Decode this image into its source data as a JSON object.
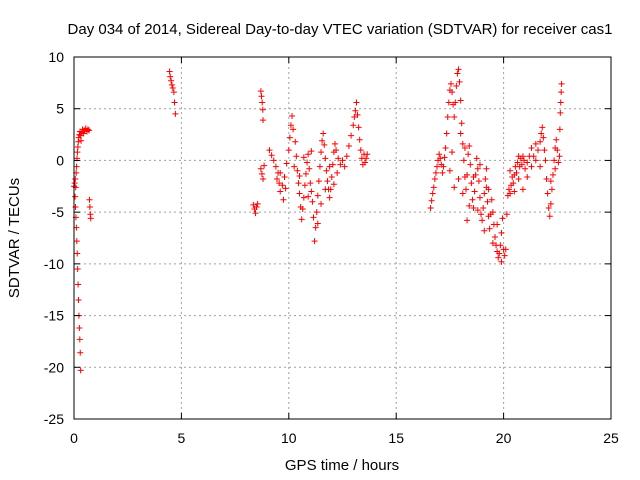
{
  "chart_data": {
    "type": "scatter",
    "title": "Day 034 of 2014, Sidereal Day-to-day VTEC variation (SDTVAR) for receiver cas1",
    "xlabel": "GPS time / hours",
    "ylabel": "SDTVAR / TECUs",
    "xlim": [
      0,
      25
    ],
    "ylim": [
      -25,
      10
    ],
    "xticks": [
      0,
      5,
      10,
      15,
      20,
      25
    ],
    "yticks": [
      -25,
      -20,
      -15,
      -10,
      -5,
      0,
      5,
      10
    ],
    "xtick_labels": [
      "0",
      "5",
      "10",
      "15",
      "20",
      "25"
    ],
    "ytick_labels": [
      "-25",
      "-20",
      "-15",
      "-10",
      "-5",
      "0",
      "5",
      "10"
    ],
    "grid": true,
    "marker": "+",
    "color": "#ff0000",
    "series": [
      {
        "name": "cas1",
        "points": [
          [
            0.0,
            -2.5
          ],
          [
            0.03,
            -2.2
          ],
          [
            0.06,
            -1.8
          ],
          [
            0.08,
            -2.6
          ],
          [
            0.1,
            -1.2
          ],
          [
            0.12,
            -0.6
          ],
          [
            0.14,
            0.2
          ],
          [
            0.16,
            0.8
          ],
          [
            0.18,
            1.3
          ],
          [
            0.2,
            1.8
          ],
          [
            0.22,
            2.2
          ],
          [
            0.25,
            2.5
          ],
          [
            0.28,
            2.8
          ],
          [
            0.3,
            2.4
          ],
          [
            0.33,
            1.9
          ],
          [
            0.36,
            2.7
          ],
          [
            0.4,
            3.0
          ],
          [
            0.45,
            2.6
          ],
          [
            0.5,
            2.9
          ],
          [
            0.55,
            3.1
          ],
          [
            0.6,
            2.8
          ],
          [
            0.65,
            3.0
          ],
          [
            0.7,
            2.9
          ],
          [
            0.05,
            -3.5
          ],
          [
            0.07,
            -4.5
          ],
          [
            0.09,
            -5.5
          ],
          [
            0.11,
            -6.5
          ],
          [
            0.13,
            -7.8
          ],
          [
            0.15,
            -9.0
          ],
          [
            0.17,
            -10.5
          ],
          [
            0.19,
            -12.0
          ],
          [
            0.21,
            -13.5
          ],
          [
            0.23,
            -15.0
          ],
          [
            0.25,
            -16.2
          ],
          [
            0.27,
            -17.3
          ],
          [
            0.29,
            -18.6
          ],
          [
            0.31,
            -20.3
          ],
          [
            0.72,
            -3.8
          ],
          [
            0.74,
            -4.5
          ],
          [
            0.76,
            -5.2
          ],
          [
            0.78,
            -5.6
          ],
          [
            4.45,
            8.6
          ],
          [
            4.48,
            8.1
          ],
          [
            4.52,
            7.7
          ],
          [
            4.56,
            7.3
          ],
          [
            4.6,
            7.0
          ],
          [
            4.65,
            6.6
          ],
          [
            4.68,
            5.6
          ],
          [
            4.72,
            4.5
          ],
          [
            8.35,
            -4.3
          ],
          [
            8.4,
            -4.7
          ],
          [
            8.45,
            -5.1
          ],
          [
            8.5,
            -4.5
          ],
          [
            8.55,
            -4.2
          ],
          [
            8.7,
            6.7
          ],
          [
            8.73,
            6.2
          ],
          [
            8.76,
            5.6
          ],
          [
            8.79,
            4.9
          ],
          [
            8.8,
            3.9
          ],
          [
            8.7,
            -0.8
          ],
          [
            8.75,
            -1.3
          ],
          [
            8.8,
            -1.8
          ],
          [
            8.85,
            -0.5
          ],
          [
            9.1,
            1.0
          ],
          [
            9.2,
            0.5
          ],
          [
            9.3,
            0.0
          ],
          [
            9.4,
            -0.6
          ],
          [
            9.5,
            -1.2
          ],
          [
            9.55,
            -2.2
          ],
          [
            9.6,
            -3.0
          ],
          [
            9.7,
            -2.4
          ],
          [
            9.8,
            -1.6
          ],
          [
            9.9,
            -0.3
          ],
          [
            10.0,
            1.0
          ],
          [
            10.05,
            2.2
          ],
          [
            10.1,
            3.4
          ],
          [
            10.15,
            4.3
          ],
          [
            10.2,
            3.0
          ],
          [
            10.3,
            1.8
          ],
          [
            10.35,
            0.4
          ],
          [
            10.4,
            -1.0
          ],
          [
            10.45,
            -2.2
          ],
          [
            10.5,
            -3.2
          ],
          [
            10.55,
            -4.5
          ],
          [
            10.6,
            -5.7
          ],
          [
            10.65,
            -4.7
          ],
          [
            10.7,
            -3.6
          ],
          [
            10.75,
            -2.4
          ],
          [
            10.8,
            -1.3
          ],
          [
            10.85,
            -0.2
          ],
          [
            10.9,
            0.6
          ],
          [
            10.95,
            -0.8
          ],
          [
            11.0,
            -2.2
          ],
          [
            11.05,
            -3.0
          ],
          [
            11.1,
            -4.0
          ],
          [
            11.15,
            -5.5
          ],
          [
            11.2,
            -7.8
          ],
          [
            11.25,
            -6.5
          ],
          [
            11.3,
            -5.0
          ],
          [
            11.35,
            -3.4
          ],
          [
            11.4,
            -2.0
          ],
          [
            11.45,
            -0.6
          ],
          [
            11.5,
            0.8
          ],
          [
            11.55,
            1.9
          ],
          [
            11.6,
            2.6
          ],
          [
            11.65,
            1.5
          ],
          [
            11.7,
            0.2
          ],
          [
            11.75,
            -1.0
          ],
          [
            11.8,
            -2.0
          ],
          [
            11.85,
            -2.8
          ],
          [
            11.9,
            -3.6
          ],
          [
            11.95,
            -2.8
          ],
          [
            12.0,
            -1.6
          ],
          [
            12.05,
            -0.4
          ],
          [
            12.1,
            0.8
          ],
          [
            12.15,
            1.6
          ],
          [
            12.2,
            1.0
          ],
          [
            12.3,
            0.2
          ],
          [
            12.4,
            -0.4
          ],
          [
            12.5,
            0.0
          ],
          [
            12.6,
            -0.6
          ],
          [
            12.7,
            0.4
          ],
          [
            12.8,
            1.4
          ],
          [
            12.9,
            2.4
          ],
          [
            13.0,
            3.4
          ],
          [
            13.05,
            4.2
          ],
          [
            13.1,
            4.8
          ],
          [
            13.15,
            5.6
          ],
          [
            13.2,
            4.4
          ],
          [
            13.25,
            3.2
          ],
          [
            13.3,
            2.0
          ],
          [
            13.35,
            1.0
          ],
          [
            13.4,
            0.2
          ],
          [
            13.45,
            -0.4
          ],
          [
            13.5,
            0.6
          ],
          [
            13.55,
            -0.2
          ],
          [
            13.6,
            0.2
          ],
          [
            13.65,
            0.6
          ],
          [
            9.45,
            -1.8
          ],
          [
            9.6,
            -1.2
          ],
          [
            9.75,
            -3.8
          ],
          [
            9.85,
            -2.7
          ],
          [
            10.25,
            -0.6
          ],
          [
            10.5,
            -1.5
          ],
          [
            10.7,
            0.3
          ],
          [
            10.9,
            -3.5
          ],
          [
            11.05,
            0.9
          ],
          [
            11.35,
            -6.1
          ],
          [
            11.5,
            -4.2
          ],
          [
            11.7,
            -2.8
          ],
          [
            11.9,
            -0.6
          ],
          [
            12.1,
            -2.3
          ],
          [
            12.25,
            -1.2
          ],
          [
            16.6,
            -4.6
          ],
          [
            16.65,
            -3.9
          ],
          [
            16.7,
            -3.2
          ],
          [
            16.75,
            -2.6
          ],
          [
            16.8,
            -1.8
          ],
          [
            16.85,
            -1.2
          ],
          [
            16.9,
            -0.6
          ],
          [
            16.95,
            0.0
          ],
          [
            17.0,
            0.6
          ],
          [
            17.05,
            0.2
          ],
          [
            17.1,
            -0.4
          ],
          [
            17.15,
            -1.2
          ],
          [
            17.2,
            -0.6
          ],
          [
            17.25,
            0.3
          ],
          [
            17.3,
            1.2
          ],
          [
            17.35,
            2.6
          ],
          [
            17.4,
            4.2
          ],
          [
            17.45,
            5.6
          ],
          [
            17.5,
            6.8
          ],
          [
            17.55,
            7.4
          ],
          [
            17.6,
            6.6
          ],
          [
            17.65,
            5.4
          ],
          [
            17.7,
            4.2
          ],
          [
            17.75,
            5.6
          ],
          [
            17.8,
            7.2
          ],
          [
            17.85,
            8.4
          ],
          [
            17.9,
            8.8
          ],
          [
            17.95,
            7.6
          ],
          [
            18.0,
            5.8
          ],
          [
            18.05,
            3.6
          ],
          [
            18.1,
            1.6
          ],
          [
            18.15,
            0.0
          ],
          [
            18.2,
            -1.6
          ],
          [
            18.25,
            -2.8
          ],
          [
            18.3,
            -1.4
          ],
          [
            18.35,
            0.6
          ],
          [
            18.4,
            1.4
          ],
          [
            18.45,
            -0.4
          ],
          [
            18.5,
            -2.2
          ],
          [
            18.55,
            -3.8
          ],
          [
            18.6,
            -4.6
          ],
          [
            18.65,
            -3.0
          ],
          [
            18.7,
            -1.4
          ],
          [
            18.75,
            0.2
          ],
          [
            18.8,
            -0.8
          ],
          [
            18.85,
            -2.0
          ],
          [
            18.9,
            -3.6
          ],
          [
            18.95,
            -5.2
          ],
          [
            19.0,
            -5.8
          ],
          [
            19.05,
            -4.6
          ],
          [
            19.1,
            -3.2
          ],
          [
            19.15,
            -1.8
          ],
          [
            19.2,
            -2.6
          ],
          [
            19.25,
            -4.0
          ],
          [
            19.3,
            -5.4
          ],
          [
            19.35,
            -6.6
          ],
          [
            19.4,
            -5.2
          ],
          [
            19.45,
            -3.8
          ],
          [
            19.5,
            -5.0
          ],
          [
            19.55,
            -6.2
          ],
          [
            19.6,
            -7.4
          ],
          [
            19.65,
            -8.2
          ],
          [
            19.7,
            -8.8
          ],
          [
            19.75,
            -9.4
          ],
          [
            19.8,
            -9.0
          ],
          [
            19.85,
            -8.2
          ],
          [
            19.9,
            -7.0
          ],
          [
            19.95,
            -5.6
          ],
          [
            20.0,
            -8.6
          ],
          [
            20.05,
            -9.2
          ],
          [
            20.1,
            -8.6
          ],
          [
            20.15,
            -5.2
          ],
          [
            20.2,
            -3.4
          ],
          [
            20.25,
            -2.8
          ],
          [
            20.3,
            -3.2
          ],
          [
            20.35,
            -2.4
          ],
          [
            20.4,
            -1.6
          ],
          [
            20.45,
            -2.2
          ],
          [
            20.5,
            -1.4
          ],
          [
            20.55,
            -0.6
          ],
          [
            20.6,
            -1.2
          ],
          [
            20.65,
            -0.2
          ],
          [
            20.7,
            0.4
          ],
          [
            20.75,
            -0.6
          ],
          [
            20.8,
            0.2
          ],
          [
            20.85,
            -0.4
          ],
          [
            20.9,
            0.4
          ],
          [
            20.95,
            0.0
          ],
          [
            21.0,
            -0.8
          ],
          [
            21.1,
            -0.2
          ],
          [
            21.2,
            0.4
          ],
          [
            21.3,
            1.2
          ],
          [
            21.4,
            0.4
          ],
          [
            21.5,
            0.0
          ],
          [
            21.6,
            1.0
          ],
          [
            21.7,
            1.8
          ],
          [
            21.75,
            2.6
          ],
          [
            21.8,
            3.2
          ],
          [
            21.85,
            2.2
          ],
          [
            21.9,
            1.0
          ],
          [
            21.95,
            0.0
          ],
          [
            22.0,
            -1.8
          ],
          [
            22.05,
            -3.2
          ],
          [
            22.1,
            -4.6
          ],
          [
            22.15,
            -5.4
          ],
          [
            22.2,
            -4.2
          ],
          [
            22.25,
            -2.8
          ],
          [
            22.3,
            -1.4
          ],
          [
            22.35,
            0.0
          ],
          [
            22.4,
            1.2
          ],
          [
            22.45,
            2.0
          ],
          [
            22.5,
            1.0
          ],
          [
            22.55,
            -0.2
          ],
          [
            22.6,
            0.4
          ],
          [
            22.62,
            3.0
          ],
          [
            22.64,
            4.6
          ],
          [
            22.66,
            5.6
          ],
          [
            22.68,
            6.6
          ],
          [
            22.7,
            7.4
          ],
          [
            17.5,
            -1.0
          ],
          [
            17.7,
            -2.6
          ],
          [
            17.9,
            -1.8
          ],
          [
            18.1,
            -3.2
          ],
          [
            18.2,
            1.2
          ],
          [
            18.4,
            -4.4
          ],
          [
            18.6,
            -1.6
          ],
          [
            18.8,
            -4.8
          ],
          [
            18.9,
            -0.4
          ],
          [
            19.1,
            -6.8
          ],
          [
            19.3,
            -2.8
          ],
          [
            19.5,
            -8.0
          ],
          [
            19.7,
            -6.2
          ],
          [
            19.9,
            -9.8
          ],
          [
            20.3,
            -1.0
          ],
          [
            20.5,
            -3.0
          ],
          [
            20.7,
            -1.8
          ],
          [
            20.9,
            -2.8
          ],
          [
            21.1,
            -1.6
          ],
          [
            21.3,
            -0.6
          ],
          [
            21.5,
            1.6
          ],
          [
            21.7,
            -0.6
          ],
          [
            22.2,
            -2.0
          ],
          [
            22.4,
            -0.8
          ],
          [
            18.0,
            2.6
          ],
          [
            17.6,
            0.8
          ],
          [
            18.3,
            -5.8
          ],
          [
            19.2,
            -0.8
          ]
        ]
      }
    ]
  }
}
